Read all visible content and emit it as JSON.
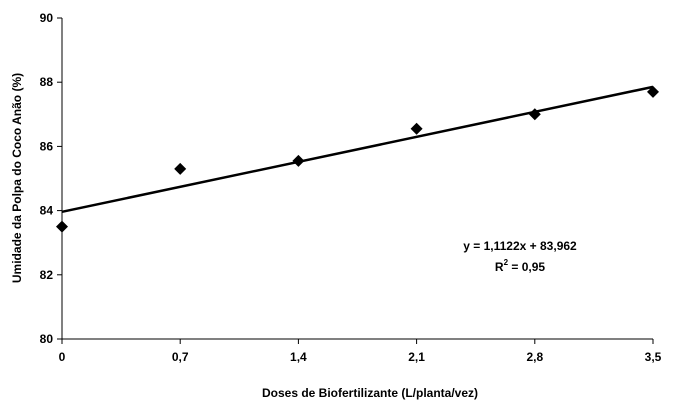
{
  "chart_data": {
    "type": "scatter",
    "xlabel": "Doses de Biofertilizante (L/planta/vez)",
    "ylabel": "Umidade da Polpa do Coco Anão (%)",
    "xlim": [
      0,
      3.5
    ],
    "ylim": [
      80,
      90
    ],
    "x_ticks": [
      "0",
      "0,7",
      "1,4",
      "2,1",
      "2,8",
      "3,5"
    ],
    "x_tick_values": [
      0,
      0.7,
      1.4,
      2.1,
      2.8,
      3.5
    ],
    "y_ticks": [
      "80",
      "82",
      "84",
      "86",
      "88",
      "90"
    ],
    "y_tick_values": [
      80,
      82,
      84,
      86,
      88,
      90
    ],
    "grid": false,
    "series": [
      {
        "marker": "diamond",
        "x": [
          0,
          0.7,
          1.4,
          2.1,
          2.8,
          3.5
        ],
        "y": [
          83.5,
          85.3,
          85.55,
          86.55,
          87.0,
          87.7
        ]
      }
    ],
    "trendline": {
      "slope": 1.1122,
      "intercept": 83.962,
      "equation": "y = 1,1122x + 83,962",
      "r2_prefix": "R",
      "r2_sup": "2",
      "r2_suffix": " = 0,95"
    },
    "colors": {
      "marks": "#000000",
      "axis": "#000000"
    }
  }
}
